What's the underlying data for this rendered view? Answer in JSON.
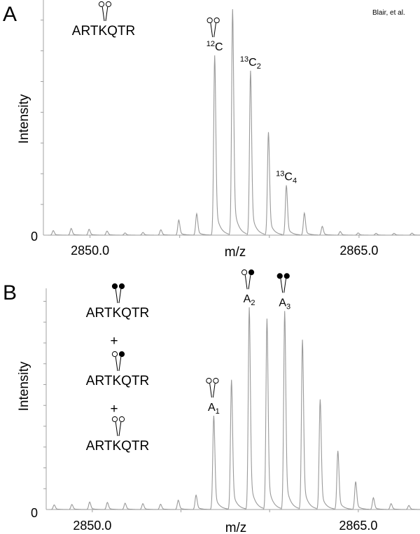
{
  "credit": "Blair, et al.",
  "chart_data": [
    {
      "type": "line",
      "panel": "A",
      "title": "",
      "xlabel": "m/z",
      "ylabel": "Intensity",
      "xlim": [
        2847.4,
        2868.4
      ],
      "xticks": [
        2850,
        2855,
        2860,
        2865
      ],
      "xtick_labels": {
        "2850": "2850.0",
        "2865": "2865.0"
      },
      "ylim": [
        0,
        104.1
      ],
      "ytick_step": 13.6,
      "ytick_label_zero": "0",
      "peaks_mz": [
        2847.95,
        2848.95,
        2849.95,
        2850.95,
        2851.95,
        2852.95,
        2853.95,
        2854.95,
        2855.95,
        2856.95,
        2857.95,
        2858.95,
        2859.95,
        2860.95,
        2861.95,
        2862.95,
        2863.95,
        2864.95,
        2865.95,
        2866.95,
        2867.95
      ],
      "peaks_rel_intensity": [
        2,
        3,
        2.6,
        1.8,
        1,
        1.2,
        2.4,
        6.7,
        9.5,
        79.6,
        100,
        72.8,
        45.6,
        22.1,
        9.8,
        3.9,
        1.6,
        1,
        0.8,
        0.8,
        0.9
      ],
      "legend": {
        "sequence": "ARTKQTR",
        "marks": [
          "open",
          "open"
        ]
      },
      "annotations": [
        {
          "mz": 2856.95,
          "sup": "12",
          "base": "C",
          "sub": "",
          "marks": [
            "open",
            "open"
          ]
        },
        {
          "mz": 2858.95,
          "sup": "13",
          "base": "C",
          "sub": "2",
          "marks": []
        },
        {
          "mz": 2860.95,
          "sup": "13",
          "base": "C",
          "sub": "4",
          "marks": []
        }
      ]
    },
    {
      "type": "line",
      "panel": "B",
      "title": "",
      "xlabel": "m/z",
      "ylabel": "Intensity",
      "xlim": [
        2847.4,
        2868.4
      ],
      "xticks": [
        2850,
        2855,
        2860,
        2865
      ],
      "xtick_labels": {
        "2850": "2850.0",
        "2865": "2865.0"
      },
      "ylim": [
        0,
        109.4
      ],
      "ytick_step": 10.3,
      "ytick_label_zero": "0",
      "peaks_mz": [
        2847.85,
        2848.85,
        2849.85,
        2850.85,
        2851.85,
        2852.85,
        2853.85,
        2854.85,
        2855.85,
        2856.85,
        2857.85,
        2858.85,
        2859.85,
        2860.85,
        2861.85,
        2862.85,
        2863.85,
        2864.85,
        2865.85,
        2866.85,
        2867.85
      ],
      "peaks_rel_intensity": [
        2.3,
        2.5,
        3.7,
        3.5,
        3.1,
        2.9,
        2.6,
        4.6,
        7.1,
        46.4,
        64.2,
        100,
        94.4,
        98.2,
        84.0,
        54.5,
        29.0,
        13.8,
        5.8,
        2.9,
        2.0
      ],
      "legend": {
        "items": [
          {
            "sequence": "ARTKQTR",
            "marks": [
              "filled",
              "filled"
            ]
          },
          {
            "sequence": "ARTKQTR",
            "marks": [
              "open",
              "filled"
            ]
          },
          {
            "sequence": "ARTKQTR",
            "marks": [
              "open",
              "open"
            ]
          }
        ],
        "separator": "+"
      },
      "annotations": [
        {
          "mz": 2856.85,
          "sup": "",
          "base": "A",
          "sub": "1",
          "marks": [
            "open",
            "open"
          ]
        },
        {
          "mz": 2858.85,
          "sup": "",
          "base": "A",
          "sub": "2",
          "marks": [
            "open",
            "filled"
          ]
        },
        {
          "mz": 2860.85,
          "sup": "",
          "base": "A",
          "sub": "3",
          "marks": [
            "filled",
            "filled"
          ]
        }
      ]
    }
  ],
  "colors": {
    "trace": "#9a9a9a",
    "axis": "#a0a0a0",
    "mark": "#000000"
  }
}
